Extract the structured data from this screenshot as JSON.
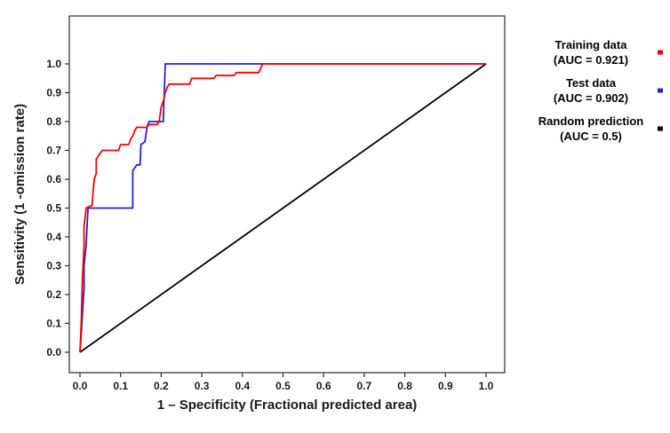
{
  "chart_data": {
    "type": "line",
    "title": "",
    "xlabel": "1 – Specificity (Fractional predicted area)",
    "ylabel": "Sensitivity (1 -omission rate)",
    "xlim": [
      0,
      1
    ],
    "ylim": [
      0,
      1
    ],
    "grid": false,
    "legend_position": "right",
    "xticks": [
      "0.0",
      "0.1",
      "0.2",
      "0.3",
      "0.4",
      "0.5",
      "0.6",
      "0.7",
      "0.8",
      "0.9",
      "1.0"
    ],
    "yticks": [
      "0.0",
      "0.1",
      "0.2",
      "0.3",
      "0.4",
      "0.5",
      "0.6",
      "0.7",
      "0.8",
      "0.9",
      "1.0"
    ],
    "series": [
      {
        "name": "Training data",
        "auc": 0.921,
        "color": "#ff0000",
        "points": [
          [
            0.0,
            0.0
          ],
          [
            0.003,
            0.1
          ],
          [
            0.006,
            0.25
          ],
          [
            0.01,
            0.37
          ],
          [
            0.01,
            0.44
          ],
          [
            0.013,
            0.47
          ],
          [
            0.015,
            0.5
          ],
          [
            0.03,
            0.51
          ],
          [
            0.032,
            0.55
          ],
          [
            0.035,
            0.6
          ],
          [
            0.04,
            0.62
          ],
          [
            0.04,
            0.67
          ],
          [
            0.05,
            0.69
          ],
          [
            0.055,
            0.7
          ],
          [
            0.095,
            0.7
          ],
          [
            0.1,
            0.72
          ],
          [
            0.12,
            0.72
          ],
          [
            0.125,
            0.74
          ],
          [
            0.13,
            0.75
          ],
          [
            0.135,
            0.77
          ],
          [
            0.14,
            0.78
          ],
          [
            0.165,
            0.78
          ],
          [
            0.17,
            0.79
          ],
          [
            0.19,
            0.79
          ],
          [
            0.195,
            0.8
          ],
          [
            0.2,
            0.85
          ],
          [
            0.205,
            0.87
          ],
          [
            0.21,
            0.9
          ],
          [
            0.215,
            0.92
          ],
          [
            0.22,
            0.93
          ],
          [
            0.27,
            0.93
          ],
          [
            0.275,
            0.95
          ],
          [
            0.33,
            0.95
          ],
          [
            0.335,
            0.96
          ],
          [
            0.38,
            0.96
          ],
          [
            0.385,
            0.97
          ],
          [
            0.44,
            0.97
          ],
          [
            0.45,
            1.0
          ],
          [
            1.0,
            1.0
          ]
        ]
      },
      {
        "name": "Test data",
        "auc": 0.902,
        "color": "#2222dd",
        "points": [
          [
            0.0,
            0.0
          ],
          [
            0.004,
            0.08
          ],
          [
            0.008,
            0.18
          ],
          [
            0.01,
            0.22
          ],
          [
            0.01,
            0.3
          ],
          [
            0.013,
            0.34
          ],
          [
            0.015,
            0.37
          ],
          [
            0.018,
            0.45
          ],
          [
            0.02,
            0.5
          ],
          [
            0.13,
            0.5
          ],
          [
            0.13,
            0.63
          ],
          [
            0.135,
            0.64
          ],
          [
            0.14,
            0.65
          ],
          [
            0.148,
            0.65
          ],
          [
            0.15,
            0.72
          ],
          [
            0.16,
            0.73
          ],
          [
            0.165,
            0.78
          ],
          [
            0.17,
            0.8
          ],
          [
            0.205,
            0.8
          ],
          [
            0.21,
            1.0
          ],
          [
            1.0,
            1.0
          ]
        ]
      },
      {
        "name": "Random prediction",
        "auc": 0.5,
        "color": "#000000",
        "points": [
          [
            0.0,
            0.0
          ],
          [
            1.0,
            1.0
          ]
        ]
      }
    ]
  },
  "legend": {
    "items": [
      {
        "label": "Training data",
        "auc": "(AUC = 0.921)",
        "color": "#ff0000"
      },
      {
        "label": "Test data",
        "auc": "(AUC = 0.902)",
        "color": "#2222dd"
      },
      {
        "label": "Random prediction",
        "auc": "(AUC = 0.5)",
        "color": "#000000"
      }
    ]
  }
}
